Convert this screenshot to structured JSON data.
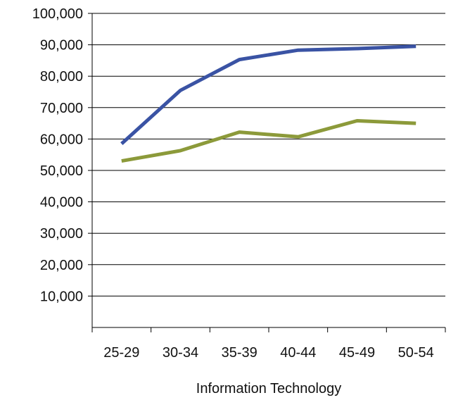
{
  "chart_data": {
    "type": "line",
    "title": "",
    "xlabel": "Information Technology",
    "ylabel": "",
    "categories": [
      "25-29",
      "30-34",
      "35-39",
      "40-44",
      "45-49",
      "50-54"
    ],
    "ylim": [
      0,
      100000
    ],
    "yticks": [
      {
        "value": 10000,
        "label": "10,000"
      },
      {
        "value": 20000,
        "label": "20,000"
      },
      {
        "value": 30000,
        "label": "30,000"
      },
      {
        "value": 40000,
        "label": "40,000"
      },
      {
        "value": 50000,
        "label": "50,000"
      },
      {
        "value": 60000,
        "label": "60,000"
      },
      {
        "value": 70000,
        "label": "70,000"
      },
      {
        "value": 80000,
        "label": "80,000"
      },
      {
        "value": 90000,
        "label": "90,000"
      },
      {
        "value": 100000,
        "label": "100,000"
      }
    ],
    "grid": true,
    "legend": "none",
    "series": [
      {
        "color": "#3a53a4",
        "values": [
          58500,
          75500,
          85300,
          88300,
          88800,
          89500
        ]
      },
      {
        "color": "#8c9a3a",
        "values": [
          53000,
          56300,
          62200,
          60700,
          65800,
          65000
        ]
      }
    ]
  }
}
